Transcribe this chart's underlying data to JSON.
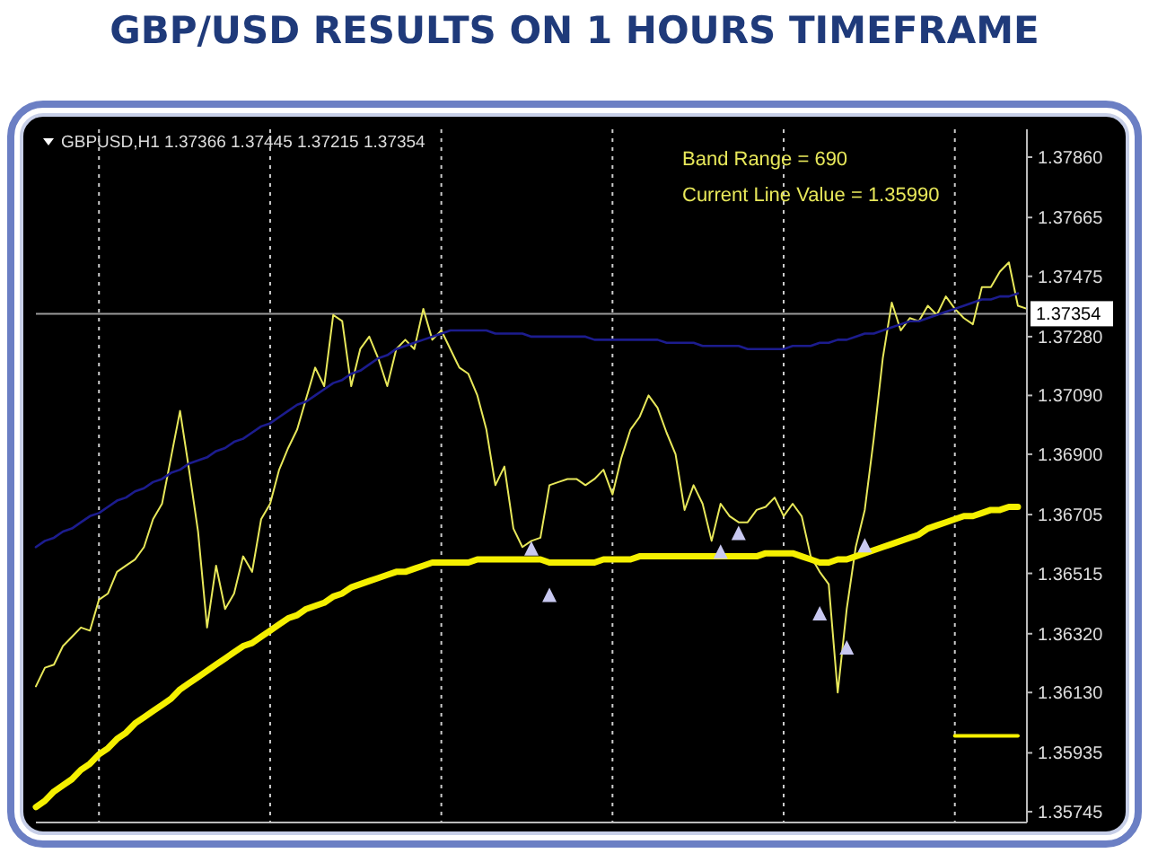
{
  "chart_data": {
    "type": "line",
    "title": "GBP/USD RESULTS ON 1 HOURS TIMEFRAME",
    "annotations": [
      "GBPUSD,H1  1.37366 1.37445 1.37215 1.37354",
      "Band Range = 690",
      "Current Line Value = 1.35990"
    ],
    "categories": [
      null,
      null,
      null,
      null,
      null,
      null,
      null,
      null,
      null,
      null,
      null,
      null,
      null,
      null,
      null,
      null,
      null,
      null,
      null,
      null,
      null,
      null,
      null,
      null,
      null,
      null,
      null,
      null,
      null,
      null,
      null,
      null,
      null,
      null,
      null,
      null,
      null,
      null,
      null,
      null,
      null,
      null,
      null,
      null,
      null,
      null,
      null,
      null,
      null,
      null,
      null,
      null,
      null,
      null,
      null,
      null,
      null,
      null,
      null,
      null,
      null,
      null,
      null,
      null,
      null,
      null,
      null,
      null,
      null,
      null,
      null,
      null,
      null,
      null,
      null,
      null,
      null,
      null,
      null,
      null,
      null,
      null,
      null,
      null,
      null,
      null,
      null,
      null,
      null,
      null,
      null,
      null,
      null,
      null,
      null,
      null,
      null,
      null,
      null,
      null,
      null,
      null,
      null,
      null,
      null,
      null,
      null,
      null,
      null,
      null,
      null
    ],
    "ylim": [
      1.3571,
      1.3795
    ],
    "yticks": [
      {
        "value": 1.3786,
        "label": "1.37860"
      },
      {
        "value": 1.37665,
        "label": "1.37665"
      },
      {
        "value": 1.37475,
        "label": "1.37475"
      },
      {
        "value": 1.3728,
        "label": "1.37280"
      },
      {
        "value": 1.3709,
        "label": "1.37090"
      },
      {
        "value": 1.369,
        "label": "1.36900"
      },
      {
        "value": 1.36705,
        "label": "1.36705"
      },
      {
        "value": 1.36515,
        "label": "1.36515"
      },
      {
        "value": 1.3632,
        "label": "1.36320"
      },
      {
        "value": 1.3613,
        "label": "1.36130"
      },
      {
        "value": 1.35935,
        "label": "1.35935"
      },
      {
        "value": 1.35745,
        "label": "1.35745"
      }
    ],
    "tick_labels": "y",
    "grid": "x",
    "line_style": "solid",
    "ref_lines": [
      {
        "axis": "y",
        "value": 1.37354,
        "label": "1.37354",
        "color": "#9a9a9a"
      }
    ],
    "series": [
      {
        "color": "#e8e85a",
        "values": [
          1.3615,
          1.3621,
          1.3622,
          1.3628,
          1.3631,
          1.3634,
          1.3633,
          1.3643,
          1.3645,
          1.3652,
          1.3654,
          1.3656,
          1.366,
          1.3669,
          1.3674,
          1.3689,
          1.3704,
          1.3685,
          1.3665,
          1.3634,
          1.3654,
          1.364,
          1.3645,
          1.3657,
          1.3652,
          1.3669,
          1.3674,
          1.3685,
          1.3692,
          1.3698,
          1.3708,
          1.3718,
          1.3712,
          1.3735,
          1.3733,
          1.3712,
          1.3724,
          1.3728,
          1.3721,
          1.3712,
          1.3724,
          1.3727,
          1.3724,
          1.3737,
          1.3727,
          1.373,
          1.3724,
          1.3718,
          1.3716,
          1.3709,
          1.3698,
          1.368,
          1.3686,
          1.3666,
          1.366,
          1.3662,
          1.3663,
          1.368,
          1.3681,
          1.3682,
          1.3682,
          1.368,
          1.3682,
          1.3685,
          1.3677,
          1.3689,
          1.3698,
          1.3702,
          1.3709,
          1.3705,
          1.3697,
          1.369,
          1.3672,
          1.368,
          1.3674,
          1.3662,
          1.3674,
          1.367,
          1.3668,
          1.3668,
          1.3672,
          1.3673,
          1.3676,
          1.367,
          1.3674,
          1.367,
          1.3657,
          1.3652,
          1.3648,
          1.3613,
          1.364,
          1.366,
          1.3672,
          1.3695,
          1.3721,
          1.3739,
          1.373,
          1.3734,
          1.3733,
          1.3738,
          1.3735,
          1.3741,
          1.3737,
          1.3734,
          1.3732,
          1.3744,
          1.3744,
          1.3749,
          1.3752,
          1.3738,
          1.3737
        ]
      },
      {
        "color": "#1c1c8e",
        "values": [
          1.366,
          1.3662,
          1.3663,
          1.3665,
          1.3666,
          1.3668,
          1.367,
          1.3671,
          1.3673,
          1.3675,
          1.3676,
          1.3678,
          1.3679,
          1.3681,
          1.3682,
          1.3684,
          1.3685,
          1.3687,
          1.3688,
          1.3689,
          1.3691,
          1.3692,
          1.3694,
          1.3695,
          1.3697,
          1.3699,
          1.37,
          1.3702,
          1.3704,
          1.3706,
          1.3707,
          1.3709,
          1.3711,
          1.3713,
          1.3714,
          1.3716,
          1.3717,
          1.3719,
          1.3721,
          1.3722,
          1.3724,
          1.3725,
          1.3726,
          1.3727,
          1.3728,
          1.3729,
          1.373,
          1.373,
          1.373,
          1.373,
          1.373,
          1.3729,
          1.3729,
          1.3729,
          1.3729,
          1.3728,
          1.3728,
          1.3728,
          1.3728,
          1.3728,
          1.3728,
          1.3728,
          1.3727,
          1.3727,
          1.3727,
          1.3727,
          1.3727,
          1.3727,
          1.3727,
          1.3727,
          1.3726,
          1.3726,
          1.3726,
          1.3726,
          1.3725,
          1.3725,
          1.3725,
          1.3725,
          1.3725,
          1.3724,
          1.3724,
          1.3724,
          1.3724,
          1.3724,
          1.3725,
          1.3725,
          1.3725,
          1.3726,
          1.3726,
          1.3727,
          1.3727,
          1.3728,
          1.3729,
          1.3729,
          1.373,
          1.3731,
          1.3732,
          1.3733,
          1.3733,
          1.3734,
          1.3735,
          1.3736,
          1.3737,
          1.3738,
          1.3739,
          1.374,
          1.374,
          1.3741,
          1.3741,
          1.3742,
          null
        ]
      },
      {
        "color": "#f5f000",
        "values": [
          1.3576,
          1.3578,
          1.3581,
          1.3583,
          1.3585,
          1.3588,
          1.359,
          1.3593,
          1.3595,
          1.3598,
          1.36,
          1.3603,
          1.3605,
          1.3607,
          1.3609,
          1.3611,
          1.3614,
          1.3616,
          1.3618,
          1.362,
          1.3622,
          1.3624,
          1.3626,
          1.3628,
          1.3629,
          1.3631,
          1.3633,
          1.3635,
          1.3637,
          1.3638,
          1.364,
          1.3641,
          1.3642,
          1.3644,
          1.3645,
          1.3647,
          1.3648,
          1.3649,
          1.365,
          1.3651,
          1.3652,
          1.3652,
          1.3653,
          1.3654,
          1.3655,
          1.3655,
          1.3655,
          1.3655,
          1.3655,
          1.3656,
          1.3656,
          1.3656,
          1.3656,
          1.3656,
          1.3656,
          1.3656,
          1.3656,
          1.3655,
          1.3655,
          1.3655,
          1.3655,
          1.3655,
          1.3655,
          1.3656,
          1.3656,
          1.3656,
          1.3656,
          1.3657,
          1.3657,
          1.3657,
          1.3657,
          1.3657,
          1.3657,
          1.3657,
          1.3657,
          1.3657,
          1.3657,
          1.3657,
          1.3657,
          1.3657,
          1.3657,
          1.3658,
          1.3658,
          1.3658,
          1.3658,
          1.3657,
          1.3656,
          1.3655,
          1.3655,
          1.3656,
          1.3656,
          1.3657,
          1.3658,
          1.3659,
          1.366,
          1.3661,
          1.3662,
          1.3663,
          1.3664,
          1.3666,
          1.3667,
          1.3668,
          1.3669,
          1.367,
          1.367,
          1.3671,
          1.3672,
          1.3672,
          1.3673,
          1.3673,
          null
        ]
      },
      {
        "color": "#f5f000",
        "values": [
          null,
          null,
          null,
          null,
          null,
          null,
          null,
          null,
          null,
          null,
          null,
          null,
          null,
          null,
          null,
          null,
          null,
          null,
          null,
          null,
          null,
          null,
          null,
          null,
          null,
          null,
          null,
          null,
          null,
          null,
          null,
          null,
          null,
          null,
          null,
          null,
          null,
          null,
          null,
          null,
          null,
          null,
          null,
          null,
          null,
          null,
          null,
          null,
          null,
          null,
          null,
          null,
          null,
          null,
          null,
          null,
          null,
          null,
          null,
          null,
          null,
          null,
          null,
          null,
          null,
          null,
          null,
          null,
          null,
          null,
          null,
          null,
          null,
          null,
          null,
          null,
          null,
          null,
          null,
          null,
          null,
          null,
          null,
          null,
          null,
          null,
          null,
          null,
          null,
          null,
          null,
          null,
          null,
          null,
          null,
          null,
          null,
          null,
          null,
          null,
          null,
          null,
          1.3599,
          1.3599,
          1.3599,
          1.3599,
          1.3599,
          1.3599,
          1.3599,
          1.3599,
          null
        ]
      },
      {
        "type": "scatter",
        "color": "#c8c8f0",
        "marker": "triangle",
        "values": [
          null,
          null,
          null,
          null,
          null,
          null,
          null,
          null,
          null,
          null,
          null,
          null,
          null,
          null,
          null,
          null,
          null,
          null,
          null,
          null,
          null,
          null,
          null,
          null,
          null,
          null,
          null,
          null,
          null,
          null,
          null,
          null,
          null,
          null,
          null,
          null,
          null,
          null,
          null,
          null,
          null,
          null,
          null,
          null,
          null,
          null,
          null,
          null,
          null,
          null,
          null,
          null,
          null,
          null,
          null,
          1.3659,
          null,
          1.3644,
          null,
          null,
          null,
          null,
          null,
          null,
          null,
          null,
          null,
          null,
          null,
          null,
          null,
          null,
          null,
          null,
          null,
          null,
          1.3658,
          null,
          1.3664,
          null,
          null,
          null,
          null,
          null,
          null,
          null,
          null,
          1.3638,
          null,
          null,
          1.3627,
          null,
          1.366,
          null,
          null,
          null,
          null,
          null,
          null,
          null,
          null,
          null,
          null,
          null,
          null,
          null,
          null,
          null,
          null,
          null,
          null
        ]
      }
    ]
  }
}
